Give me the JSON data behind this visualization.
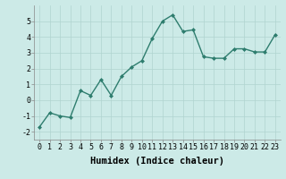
{
  "x": [
    0,
    1,
    2,
    3,
    4,
    5,
    6,
    7,
    8,
    9,
    10,
    11,
    12,
    13,
    14,
    15,
    16,
    17,
    18,
    19,
    20,
    21,
    22,
    23
  ],
  "y": [
    -1.7,
    -0.8,
    -1.0,
    -1.1,
    0.6,
    0.3,
    1.3,
    0.3,
    1.5,
    2.1,
    2.5,
    3.9,
    5.0,
    5.4,
    4.35,
    4.45,
    2.75,
    2.65,
    2.65,
    3.25,
    3.25,
    3.05,
    3.05,
    4.15
  ],
  "line_color": "#2e7d6e",
  "marker": "D",
  "marker_size": 2.0,
  "bg_color": "#cceae7",
  "grid_color": "#b0d4d0",
  "xlabel": "Humidex (Indice chaleur)",
  "ylim": [
    -2.5,
    6.0
  ],
  "xlim": [
    -0.5,
    23.5
  ],
  "yticks": [
    -2,
    -1,
    0,
    1,
    2,
    3,
    4,
    5
  ],
  "xticks": [
    0,
    1,
    2,
    3,
    4,
    5,
    6,
    7,
    8,
    9,
    10,
    11,
    12,
    13,
    14,
    15,
    16,
    17,
    18,
    19,
    20,
    21,
    22,
    23
  ],
  "tick_fontsize": 6.0,
  "xlabel_fontsize": 7.5,
  "line_width": 1.0
}
